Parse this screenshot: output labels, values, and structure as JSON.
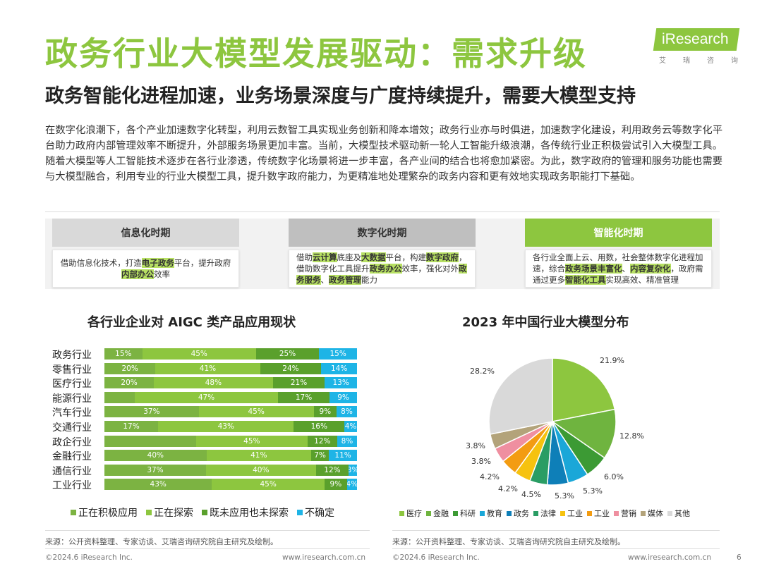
{
  "title": "政务行业大模型发展驱动：需求升级",
  "logo": {
    "text": "iResearch",
    "sub": [
      "艾",
      "瑞",
      "咨",
      "询"
    ]
  },
  "subtitle": "政务智能化进程加速，业务场景深度与广度持续提升，需要大模型支持",
  "paragraph": "在数字化浪潮下，各个产业加速数字化转型，利用云数智工具实现业务创新和降本增效；政务行业亦与时俱进，加速数字化建设，利用政务云等数字化平台助力政府内部管理效率不断提升，外部服务场景更加丰富。当前，大模型技术驱动新一轮人工智能升级浪潮，各传统行业正积极尝试引入大模型工具。随着大模型等人工智能技术逐步在各行业渗透，传统数字化场景将进一步丰富，各产业间的结合也将愈加紧密。为此，数字政府的管理和服务功能也需要与大模型融合，利用专业的行业大模型工具，提升数字政府能力，为更精准地处理繁杂的政务内容和更有效地实现政务职能打下基础。",
  "phases": [
    {
      "title": "信息化时期",
      "body_parts": [
        [
          "借助信息化技术，打造",
          false
        ],
        [
          "电子政务",
          true
        ],
        [
          "平台，提升政府",
          false
        ],
        [
          "内部办公",
          true
        ],
        [
          "效率",
          false
        ]
      ]
    },
    {
      "title": "数字化时期",
      "body_parts": [
        [
          "借助",
          false
        ],
        [
          "云计算",
          true
        ],
        [
          "底座及",
          false
        ],
        [
          "大数据",
          true
        ],
        [
          "平台，构建",
          false
        ],
        [
          "数字政府",
          true
        ],
        [
          "，借助数字化工具提升",
          false
        ],
        [
          "政务办公",
          true
        ],
        [
          "效率，强化对外",
          false
        ],
        [
          "政务服务",
          true
        ],
        [
          "、",
          false
        ],
        [
          "政务管理",
          true
        ],
        [
          "能力",
          false
        ]
      ]
    },
    {
      "title": "智能化时期",
      "body_parts": [
        [
          "各行业全面上云、用数，社会整体数字化进程加速，综合",
          false
        ],
        [
          "政务场景丰富化",
          true
        ],
        [
          "、",
          false
        ],
        [
          "内容复杂化",
          true
        ],
        [
          "，政府需通过更多",
          false
        ],
        [
          "智能化工具",
          true
        ],
        [
          "实现高效、精准管理",
          false
        ]
      ]
    }
  ],
  "bar_chart_title": "各行业企业对 AIGC 类产品应用现状",
  "pie_chart_title": "2023 年中国行业大模型分布",
  "colors": {
    "accent": "#8dc63f",
    "bar_series": [
      "#7cb342",
      "#8dc63f",
      "#5aa02c",
      "#1eb4e6"
    ],
    "pie": [
      "#8dc63f",
      "#6fb43f",
      "#3c9a34",
      "#1aa7d8",
      "#0e7fb8",
      "#2a9d64",
      "#f6c20f",
      "#f39c12",
      "#ef8fa0",
      "#b3a37a",
      "#d9d9d9"
    ]
  },
  "chart_data": [
    {
      "type": "bar",
      "stacked": true,
      "orientation": "horizontal",
      "title": "各行业企业对 AIGC 类产品应用现状",
      "categories": [
        "政务行业",
        "零售行业",
        "医疗行业",
        "能源行业",
        "汽车行业",
        "交通行业",
        "政企行业",
        "金融行业",
        "通信行业",
        "工业行业"
      ],
      "series": [
        {
          "name": "正在积极应用",
          "values": [
            15,
            20,
            20,
            10,
            37,
            17,
            37,
            40,
            37,
            43
          ]
        },
        {
          "name": "正在探索",
          "values": [
            45,
            41,
            48,
            47,
            45,
            43,
            45,
            41,
            40,
            45
          ]
        },
        {
          "name": "既未应用也未探索",
          "values": [
            25,
            24,
            21,
            17,
            9,
            16,
            12,
            7,
            12,
            9
          ]
        },
        {
          "name": "不确定",
          "values": [
            15,
            14,
            13,
            9,
            8,
            4,
            8,
            11,
            3,
            4
          ]
        }
      ],
      "labels": [
        [
          "15%",
          "45%",
          "25%",
          "15%"
        ],
        [
          "20%",
          "41%",
          "24%",
          "14%"
        ],
        [
          "20%",
          "48%",
          "21%",
          "13%"
        ],
        [
          "",
          "47%",
          "17%",
          "9%"
        ],
        [
          "37%",
          "45%",
          "9%",
          "8%"
        ],
        [
          "17%",
          "43%",
          "16%",
          "4%"
        ],
        [
          "",
          "45%",
          "12%",
          "8%"
        ],
        [
          "40%",
          "41%",
          "7%",
          "11%"
        ],
        [
          "37%",
          "40%",
          "12%",
          "3%"
        ],
        [
          "43%",
          "45%",
          "9%",
          "4%"
        ]
      ],
      "legend_position": "bottom"
    },
    {
      "type": "pie",
      "title": "2023 年中国行业大模型分布",
      "categories": [
        "医疗",
        "金融",
        "科研",
        "教育",
        "政务",
        "法律",
        "工业",
        "工业",
        "营销",
        "媒体",
        "其他"
      ],
      "values": [
        21.9,
        12.8,
        6.0,
        5.3,
        5.3,
        4.5,
        4.2,
        4.2,
        3.8,
        3.8,
        28.2
      ],
      "labels": [
        "21.9%",
        "12.8%",
        "6.0%",
        "5.3%",
        "5.3%",
        "4.5%",
        "4.2%",
        "4.2%",
        "3.8%",
        "3.8%",
        "28.2%"
      ],
      "legend_position": "bottom"
    }
  ],
  "bar_legend": [
    "正在积极应用",
    "正在探索",
    "既未应用也未探索",
    "不确定"
  ],
  "pie_legend": [
    "医疗",
    "金融",
    "科研",
    "教育",
    "政务",
    "法律",
    "工业",
    "工业",
    "营销",
    "媒体",
    "其他"
  ],
  "source_left": "来源：公开资料整理、专家访谈、艾瑞咨询研究院自主研究及绘制。",
  "source_right": "来源：公开资料整理、专家访谈、艾瑞咨询研究院自主研究及绘制。",
  "footer": {
    "copyright_left": "©2024.6 iResearch Inc.",
    "url_left": "www.iresearch.com.cn",
    "copyright_right": "©2024.6 iResearch Inc.",
    "url_right": "www.iresearch.com.cn",
    "page": "6"
  }
}
